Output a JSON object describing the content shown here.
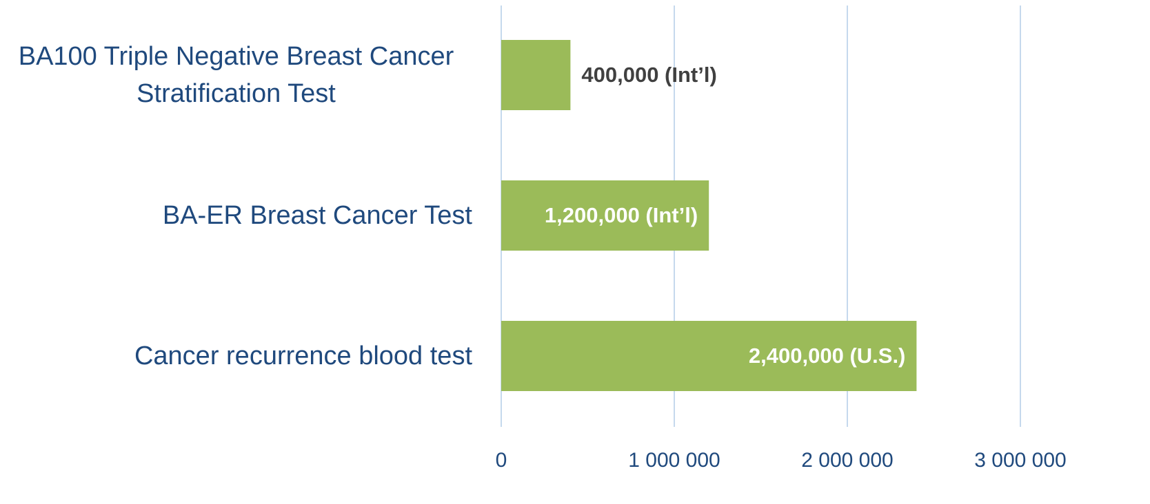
{
  "chart_data": {
    "type": "bar",
    "orientation": "horizontal",
    "categories": [
      "BA100 Triple Negative Breast Cancer Stratification Test",
      "BA-ER Breast Cancer Test",
      "Cancer recurrence blood test"
    ],
    "values": [
      400000,
      1200000,
      2400000
    ],
    "value_labels": [
      "400,000 (Int’l)",
      "1,200,000 (Int’l)",
      "2,400,000 (U.S.)"
    ],
    "color": "#9bbb59",
    "xlim": [
      0,
      3000000
    ],
    "xticks": [
      0,
      {
        "value": 1000000,
        "label": "1 000 000"
      },
      {
        "value": 2000000,
        "label": "2 000 000"
      },
      {
        "value": 3000000,
        "label": "3 000 000"
      }
    ],
    "grid": true
  }
}
